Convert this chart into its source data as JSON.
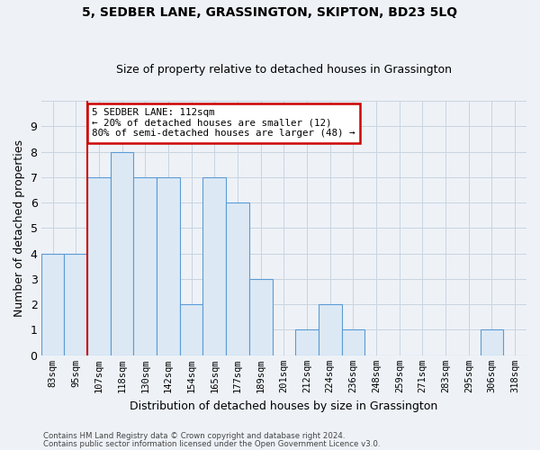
{
  "title": "5, SEDBER LANE, GRASSINGTON, SKIPTON, BD23 5LQ",
  "subtitle": "Size of property relative to detached houses in Grassington",
  "xlabel": "Distribution of detached houses by size in Grassington",
  "ylabel": "Number of detached properties",
  "categories": [
    "83sqm",
    "95sqm",
    "107sqm",
    "118sqm",
    "130sqm",
    "142sqm",
    "154sqm",
    "165sqm",
    "177sqm",
    "189sqm",
    "201sqm",
    "212sqm",
    "224sqm",
    "236sqm",
    "248sqm",
    "259sqm",
    "271sqm",
    "283sqm",
    "295sqm",
    "306sqm",
    "318sqm"
  ],
  "values": [
    4,
    4,
    7,
    8,
    7,
    7,
    2,
    7,
    6,
    3,
    0,
    1,
    2,
    1,
    0,
    0,
    0,
    0,
    0,
    1,
    0
  ],
  "bar_color": "#dce9f5",
  "bar_edge_color": "#5b9bd5",
  "annotation_text": "5 SEDBER LANE: 112sqm\n← 20% of detached houses are smaller (12)\n80% of semi-detached houses are larger (48) →",
  "annotation_box_color": "#ffffff",
  "annotation_box_edge": "#cc0000",
  "vline_color": "#cc0000",
  "ylim": [
    0,
    10
  ],
  "yticks": [
    0,
    1,
    2,
    3,
    4,
    5,
    6,
    7,
    8,
    9,
    10
  ],
  "footer1": "Contains HM Land Registry data © Crown copyright and database right 2024.",
  "footer2": "Contains public sector information licensed under the Open Government Licence v3.0.",
  "bg_color": "#eef2f7",
  "plot_bg_color": "#eef2f7",
  "grid_color": "#c8d4e0"
}
